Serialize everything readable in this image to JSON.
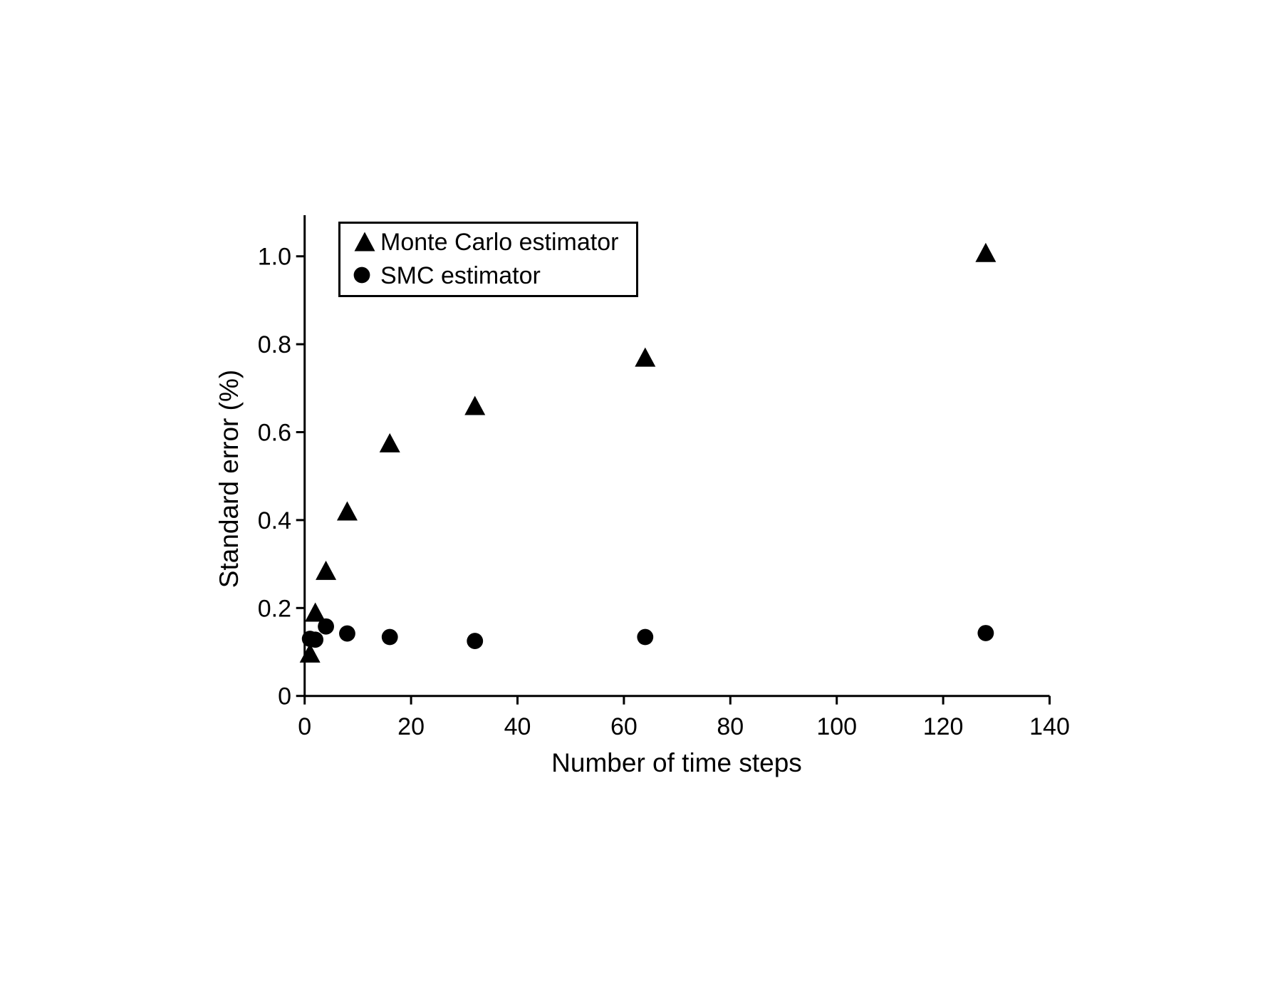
{
  "chart_data": {
    "type": "scatter",
    "title": "",
    "xlabel": "Number of time steps",
    "ylabel": "Standard error (%)",
    "xlim": [
      0,
      140
    ],
    "ylim": [
      0,
      1.1
    ],
    "grid": false,
    "legend_position": "upper-left-inside",
    "x_ticks": [
      0,
      20,
      40,
      60,
      80,
      100,
      120,
      140
    ],
    "x_tick_labels": [
      "0",
      "20",
      "40",
      "60",
      "80",
      "100",
      "120",
      "140"
    ],
    "y_ticks": [
      0,
      0.2,
      0.4,
      0.6,
      0.8,
      1.0
    ],
    "y_tick_labels": [
      "0",
      "0.2",
      "0.4",
      "0.6",
      "0.8",
      "1.0"
    ],
    "axis_color": "#000000",
    "background_color": "#ffffff",
    "series": [
      {
        "name": "Monte Carlo estimator",
        "marker": "triangle",
        "color": "#000000",
        "x": [
          1,
          2,
          4,
          8,
          16,
          32,
          64,
          128
        ],
        "y": [
          0.097,
          0.19,
          0.285,
          0.42,
          0.575,
          0.66,
          0.77,
          1.008
        ]
      },
      {
        "name": "SMC estimator",
        "marker": "circle",
        "color": "#000000",
        "x": [
          1,
          2,
          4,
          8,
          16,
          32,
          64,
          128
        ],
        "y": [
          0.13,
          0.128,
          0.158,
          0.142,
          0.134,
          0.125,
          0.134,
          0.143
        ]
      }
    ]
  }
}
